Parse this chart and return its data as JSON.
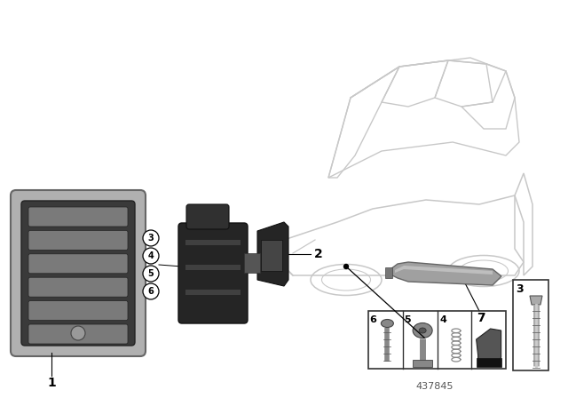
{
  "bg_color": "#ffffff",
  "line_color": "#000000",
  "diagram_num": "437845",
  "car_color": "#c8c8c8",
  "grille_frame_color": "#b0b0b0",
  "grille_dark": "#3a3a3a",
  "grille_slat_color": "#7a7a7a",
  "part_dark": "#2a2a2a",
  "part_mid": "#888888",
  "trim_color": "#a0a0a0",
  "hw_color": "#888888"
}
